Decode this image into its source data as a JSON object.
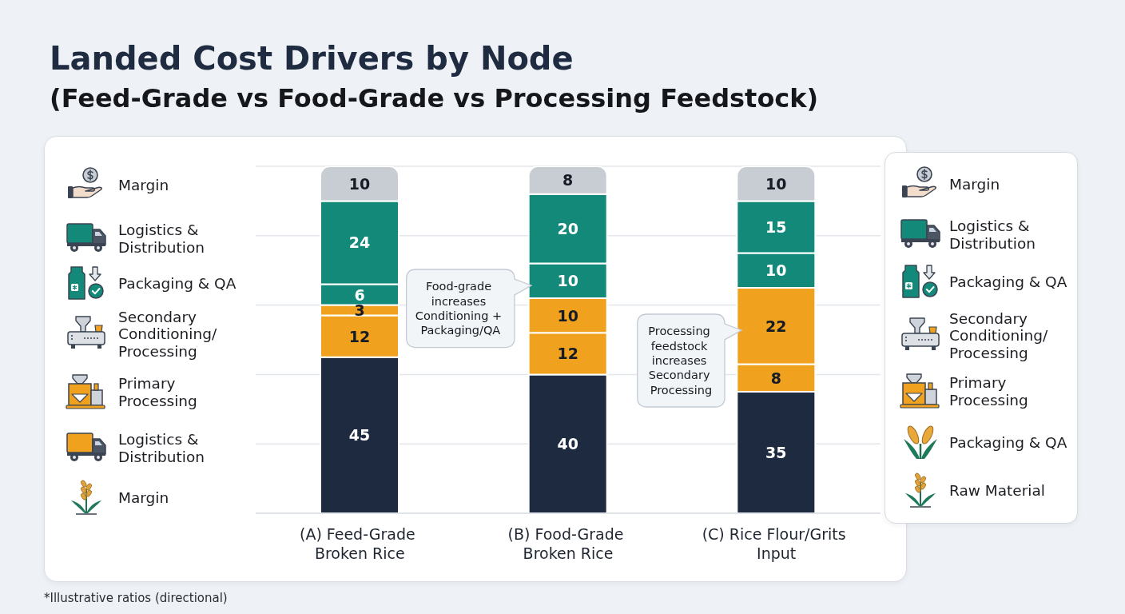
{
  "chart_data": {
    "type": "bar",
    "title": "Landed Cost Drivers by Node",
    "subtitle": "(Feed-Grade vs Food-Grade vs Processing Feedstock)",
    "categories": [
      "(A) Feed-Grade Broken Rice",
      "(B) Food-Grade Broken Rice",
      "(C) Rice Flour/Grits Input"
    ],
    "series": [
      {
        "color": "#1d2a3f",
        "values": [
          45,
          40,
          35
        ]
      },
      {
        "color": "#f0a21f",
        "values": [
          12,
          12,
          8
        ]
      },
      {
        "color": "#f0a21f",
        "values": [
          3,
          10,
          22
        ]
      },
      {
        "color": "#13897a",
        "values": [
          6,
          10,
          10
        ]
      },
      {
        "color": "#13897a",
        "values": [
          24,
          20,
          15
        ]
      },
      {
        "color": "#c8cdd3",
        "values": [
          10,
          8,
          10
        ]
      }
    ],
    "stacked": true,
    "ylim": [
      0,
      100
    ],
    "yticks": [
      {
        "value": 0,
        "label": null
      },
      {
        "value": 20,
        "label": null
      },
      {
        "value": 40,
        "label": null
      },
      {
        "value": 60,
        "label": null
      },
      {
        "value": 80,
        "label": null
      },
      {
        "value": 100,
        "label": null
      }
    ],
    "grid": "y",
    "tick_labels": "x",
    "data_labels": true,
    "annotations": [
      "*Illustrative ratios (directional)",
      "Food-grade increases Conditioning + Packaging/QA",
      "Processing feedstock increases Secondary Processing",
      "Margin",
      "Logistics & Distribution",
      "Packaging & QA",
      "Secondary Conditioning/Processing",
      "Primary Processing",
      "Logistics & Distribution",
      "Margin",
      "Margin",
      "Logistics & Distribution",
      "Packaging & QA",
      "Secondary Conditioning/Processing",
      "Primary Processing",
      "Packaging & QA",
      "Raw Material"
    ]
  }
}
